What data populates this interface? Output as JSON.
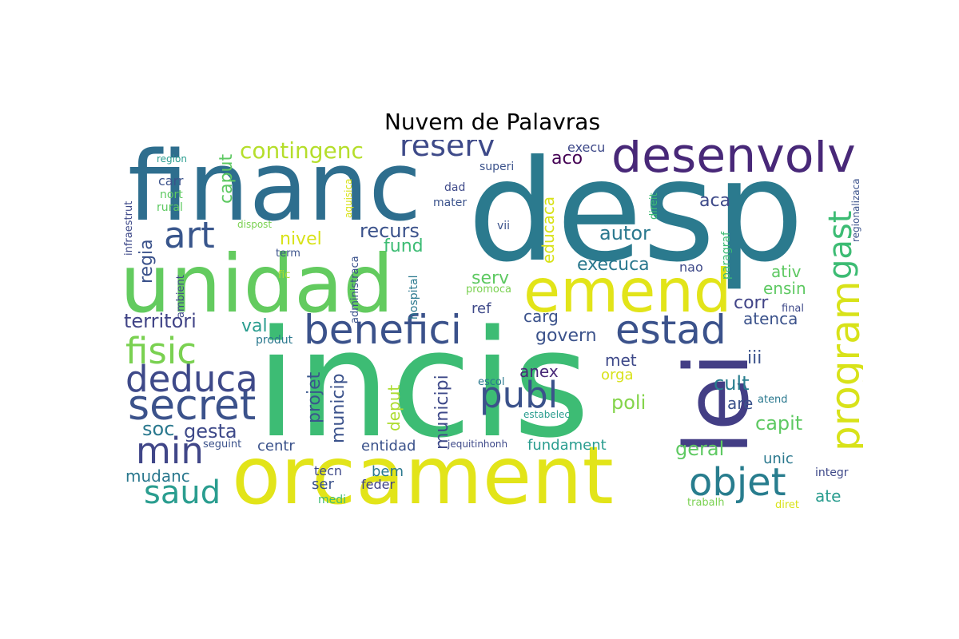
{
  "title": "Nuvem de Palavras",
  "words": [
    {
      "text": "incis",
      "color": "#3dbc74"
    },
    {
      "text": "desp",
      "color": "#2b7a8e"
    },
    {
      "text": "financ",
      "color": "#2e6e8e"
    },
    {
      "text": "unidad",
      "color": "#63cb5f"
    },
    {
      "text": "orcament",
      "color": "#e2e419"
    },
    {
      "text": "lei",
      "color": "#433e85"
    },
    {
      "text": "emend",
      "color": "#e2e419"
    },
    {
      "text": "desenvolv",
      "color": "#482878"
    },
    {
      "text": "benefici",
      "color": "#3b528b"
    },
    {
      "text": "estad",
      "color": "#3b528b"
    },
    {
      "text": "program",
      "color": "#d8e219"
    },
    {
      "text": "gast",
      "color": "#3dbc74"
    },
    {
      "text": "secret",
      "color": "#3b528b"
    },
    {
      "text": "deduca",
      "color": "#3e4989"
    },
    {
      "text": "fisic",
      "color": "#7ad151"
    },
    {
      "text": "art",
      "color": "#39568c"
    },
    {
      "text": "publ",
      "color": "#3b528b"
    },
    {
      "text": "objet",
      "color": "#287d8e"
    },
    {
      "text": "min",
      "color": "#404688"
    },
    {
      "text": "saud",
      "color": "#2a9d8f"
    },
    {
      "text": "reserv",
      "color": "#3e4a89"
    },
    {
      "text": "contingenc",
      "color": "#b5de2b"
    },
    {
      "text": "caput",
      "color": "#5ec962"
    },
    {
      "text": "soc",
      "color": "#2a788e"
    },
    {
      "text": "gesta",
      "color": "#3e4989"
    },
    {
      "text": "regia",
      "color": "#3b528b"
    },
    {
      "text": "recurs",
      "color": "#3b528b"
    },
    {
      "text": "nivel",
      "color": "#d8e219"
    },
    {
      "text": "fund",
      "color": "#3dbc74"
    },
    {
      "text": "territori",
      "color": "#414487"
    },
    {
      "text": "val",
      "color": "#2a9d8f"
    },
    {
      "text": "projet",
      "color": "#39568c"
    },
    {
      "text": "municip",
      "color": "#3b528b"
    },
    {
      "text": "municipi",
      "color": "#3e4989"
    },
    {
      "text": "deput",
      "color": "#addc30"
    },
    {
      "text": "educaca",
      "color": "#d8e219"
    },
    {
      "text": "autor",
      "color": "#2a788e"
    },
    {
      "text": "aca",
      "color": "#3e4a89"
    },
    {
      "text": "aco",
      "color": "#440154"
    },
    {
      "text": "execu",
      "color": "#3e4989"
    },
    {
      "text": "execuca",
      "color": "#2a788e"
    },
    {
      "text": "serv",
      "color": "#5ec962"
    },
    {
      "text": "ref",
      "color": "#3e4989"
    },
    {
      "text": "carg",
      "color": "#3b528b"
    },
    {
      "text": "govern",
      "color": "#3b528b"
    },
    {
      "text": "anex",
      "color": "#482878"
    },
    {
      "text": "met",
      "color": "#3e4989"
    },
    {
      "text": "orga",
      "color": "#d8e219"
    },
    {
      "text": "poli",
      "color": "#84d44b"
    },
    {
      "text": "corr",
      "color": "#414487"
    },
    {
      "text": "atenca",
      "color": "#3b528b"
    },
    {
      "text": "ativ",
      "color": "#5ec962"
    },
    {
      "text": "ensin",
      "color": "#5ec962"
    },
    {
      "text": "iii",
      "color": "#3b528b"
    },
    {
      "text": "cult",
      "color": "#287d8e"
    },
    {
      "text": "are",
      "color": "#3b528b"
    },
    {
      "text": "capit",
      "color": "#5ec962"
    },
    {
      "text": "geral",
      "color": "#5ec962"
    },
    {
      "text": "unic",
      "color": "#2a788e"
    },
    {
      "text": "ate",
      "color": "#2a9d8f"
    },
    {
      "text": "entidad",
      "color": "#3b528b"
    },
    {
      "text": "fundament",
      "color": "#2a9d8f"
    },
    {
      "text": "centr",
      "color": "#3b528b"
    },
    {
      "text": "mudanc",
      "color": "#2a788e"
    },
    {
      "text": "ser",
      "color": "#3b528b"
    },
    {
      "text": "bem",
      "color": "#2a788e"
    },
    {
      "text": "feder",
      "color": "#414487"
    },
    {
      "text": "tecn",
      "color": "#3e4989"
    },
    {
      "text": "medi",
      "color": "#3dbc74"
    },
    {
      "text": "carr",
      "color": "#3b528b"
    },
    {
      "text": "nort",
      "color": "#5ec962"
    },
    {
      "text": "rural",
      "color": "#5ec962"
    },
    {
      "text": "region",
      "color": "#2a9d8f"
    },
    {
      "text": "dispost",
      "color": "#7ad151"
    },
    {
      "text": "term",
      "color": "#3b528b"
    },
    {
      "text": "fic",
      "color": "#addc30"
    },
    {
      "text": "ambient",
      "color": "#3e4989"
    },
    {
      "text": "infraestrut",
      "color": "#3e4989"
    },
    {
      "text": "aquisica",
      "color": "#d8e219"
    },
    {
      "text": "administraca",
      "color": "#3b528b"
    },
    {
      "text": "hospital",
      "color": "#2a788e"
    },
    {
      "text": "produt",
      "color": "#2a788e"
    },
    {
      "text": "escol",
      "color": "#2a788e"
    },
    {
      "text": "estabelec",
      "color": "#2a9d8f"
    },
    {
      "text": "seguint",
      "color": "#3b528b"
    },
    {
      "text": "jequitinhonh",
      "color": "#3e4989"
    },
    {
      "text": "promoca",
      "color": "#7ad151"
    },
    {
      "text": "superi",
      "color": "#3b528b"
    },
    {
      "text": "dad",
      "color": "#3e4989"
    },
    {
      "text": "mater",
      "color": "#3b528b"
    },
    {
      "text": "vii",
      "color": "#3b528b"
    },
    {
      "text": "nao",
      "color": "#3e4989"
    },
    {
      "text": "paragraf",
      "color": "#3dbc74"
    },
    {
      "text": "direit",
      "color": "#3dbc74"
    },
    {
      "text": "regionalizaca",
      "color": "#3b528b"
    },
    {
      "text": "final",
      "color": "#3e4989"
    },
    {
      "text": "atend",
      "color": "#2a788e"
    },
    {
      "text": "integr",
      "color": "#3e4989"
    },
    {
      "text": "trabalh",
      "color": "#7ad151"
    },
    {
      "text": "diret",
      "color": "#d8e219"
    }
  ]
}
